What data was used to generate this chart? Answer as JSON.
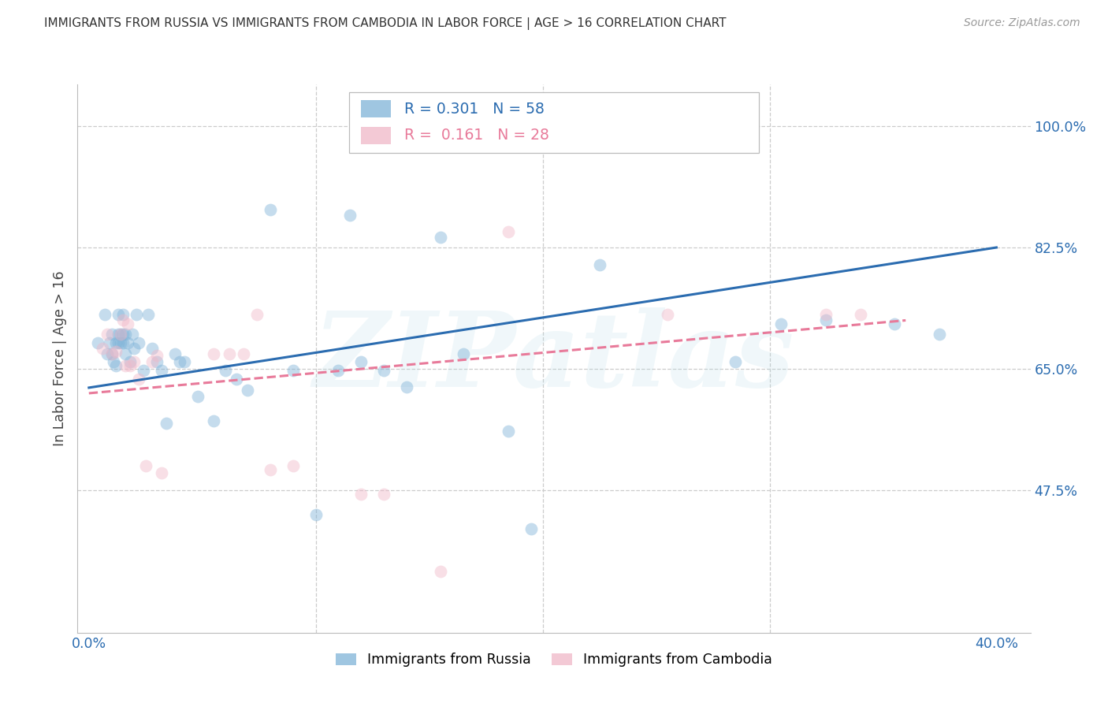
{
  "title": "IMMIGRANTS FROM RUSSIA VS IMMIGRANTS FROM CAMBODIA IN LABOR FORCE | AGE > 16 CORRELATION CHART",
  "source": "Source: ZipAtlas.com",
  "ylabel": "In Labor Force | Age > 16",
  "xlim": [
    -0.005,
    0.415
  ],
  "ylim": [
    0.27,
    1.06
  ],
  "yticks": [
    0.475,
    0.65,
    0.825,
    1.0
  ],
  "yticklabels": [
    "47.5%",
    "65.0%",
    "82.5%",
    "100.0%"
  ],
  "russia_color": "#7fb3d8",
  "cambodia_color": "#f0b8c8",
  "russia_line_color": "#2b6cb0",
  "cambodia_line_color": "#e87a9a",
  "legend_r_russia": "0.301",
  "legend_n_russia": "58",
  "legend_r_cambodia": "0.161",
  "legend_n_cambodia": "28",
  "legend_label_russia": "Immigrants from Russia",
  "legend_label_cambodia": "Immigrants from Cambodia",
  "watermark": "ZIPatlas",
  "russia_x": [
    0.004,
    0.007,
    0.008,
    0.009,
    0.01,
    0.01,
    0.011,
    0.012,
    0.012,
    0.013,
    0.013,
    0.013,
    0.014,
    0.014,
    0.015,
    0.015,
    0.015,
    0.016,
    0.016,
    0.017,
    0.018,
    0.019,
    0.02,
    0.021,
    0.022,
    0.024,
    0.026,
    0.028,
    0.03,
    0.032,
    0.034,
    0.038,
    0.04,
    0.042,
    0.048,
    0.055,
    0.06,
    0.065,
    0.07,
    0.08,
    0.09,
    0.1,
    0.11,
    0.115,
    0.12,
    0.13,
    0.14,
    0.155,
    0.165,
    0.185,
    0.195,
    0.225,
    0.255,
    0.285,
    0.305,
    0.325,
    0.355,
    0.375
  ],
  "russia_y": [
    0.688,
    0.728,
    0.672,
    0.688,
    0.7,
    0.672,
    0.66,
    0.688,
    0.655,
    0.7,
    0.688,
    0.728,
    0.7,
    0.688,
    0.7,
    0.688,
    0.728,
    0.7,
    0.672,
    0.688,
    0.66,
    0.7,
    0.68,
    0.728,
    0.688,
    0.648,
    0.728,
    0.68,
    0.66,
    0.648,
    0.572,
    0.672,
    0.66,
    0.66,
    0.61,
    0.575,
    0.648,
    0.635,
    0.62,
    0.88,
    0.648,
    0.44,
    0.648,
    0.872,
    0.66,
    0.648,
    0.624,
    0.84,
    0.672,
    0.56,
    0.42,
    0.8,
    0.99,
    0.66,
    0.715,
    0.72,
    0.715,
    0.7
  ],
  "cambodia_x": [
    0.006,
    0.008,
    0.01,
    0.012,
    0.014,
    0.015,
    0.016,
    0.017,
    0.018,
    0.02,
    0.022,
    0.025,
    0.028,
    0.03,
    0.032,
    0.055,
    0.062,
    0.068,
    0.074,
    0.08,
    0.09,
    0.12,
    0.13,
    0.155,
    0.185,
    0.255,
    0.325,
    0.34
  ],
  "cambodia_y": [
    0.68,
    0.7,
    0.672,
    0.675,
    0.7,
    0.72,
    0.655,
    0.715,
    0.655,
    0.66,
    0.635,
    0.51,
    0.66,
    0.67,
    0.5,
    0.672,
    0.672,
    0.672,
    0.728,
    0.505,
    0.51,
    0.47,
    0.47,
    0.358,
    0.848,
    0.728,
    0.728,
    0.728
  ],
  "russia_trend_x": [
    0.0,
    0.4
  ],
  "russia_trend_y": [
    0.623,
    0.825
  ],
  "cambodia_trend_x": [
    0.0,
    0.36
  ],
  "cambodia_trend_y": [
    0.615,
    0.72
  ],
  "grid_color": "#cccccc",
  "axis_label_color": "#2b6cb0",
  "title_color": "#333333",
  "dot_size": 130,
  "dot_alpha": 0.45
}
